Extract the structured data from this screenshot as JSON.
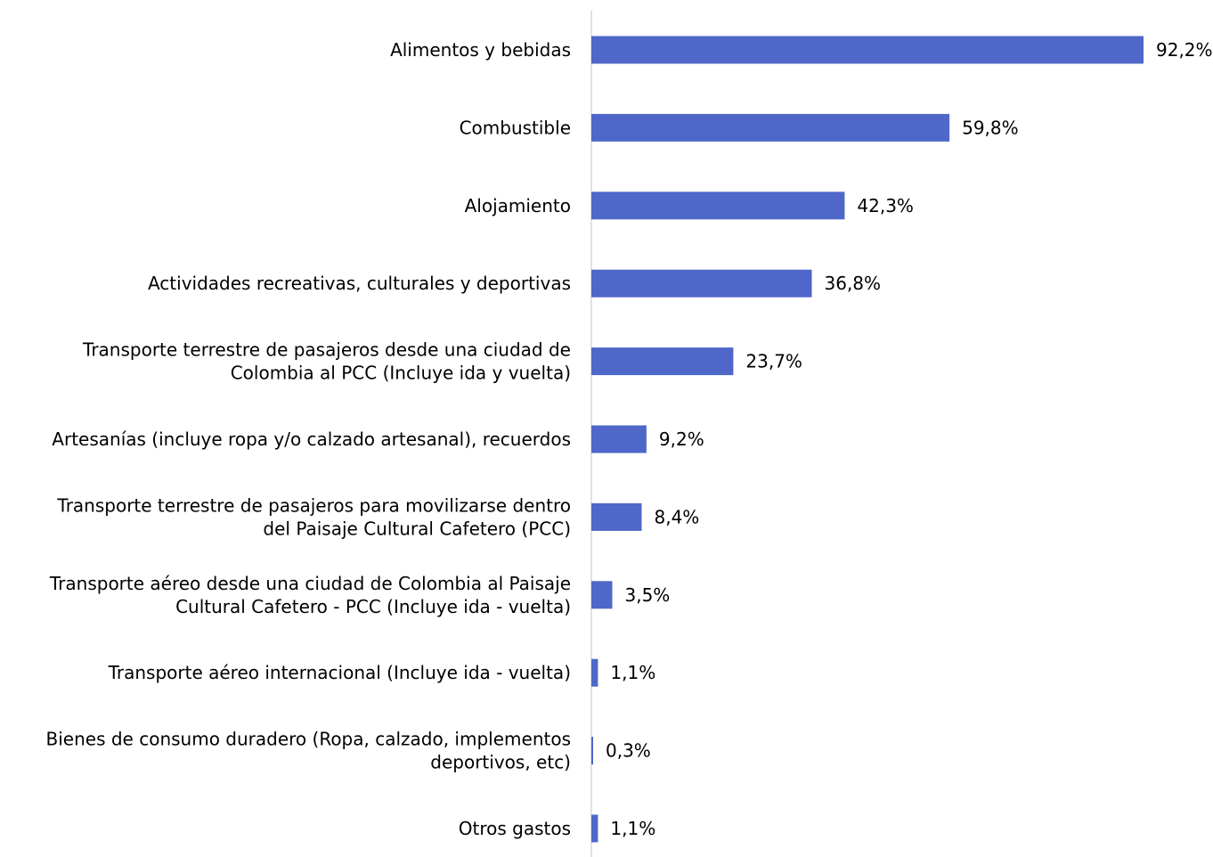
{
  "chart_data": {
    "type": "bar",
    "orientation": "horizontal",
    "categories": [
      "Alimentos y bebidas",
      "Combustible",
      "Alojamiento",
      "Actividades recreativas, culturales y deportivas",
      "Transporte terrestre de pasajeros desde una ciudad de Colombia al PCC (Incluye ida y vuelta)",
      "Artesanías (incluye ropa y/o calzado artesanal), recuerdos",
      "Transporte terrestre de pasajeros para movilizarse dentro del Paisaje Cultural Cafetero (PCC)",
      "Transporte aéreo desde una ciudad de Colombia al Paisaje Cultural Cafetero - PCC (Incluye ida - vuelta)",
      "Transporte aéreo internacional (Incluye ida - vuelta)",
      "Bienes de consumo duradero (Ropa, calzado, implementos deportivos, etc)",
      "Otros gastos"
    ],
    "category_lines": [
      [
        "Alimentos y bebidas"
      ],
      [
        "Combustible"
      ],
      [
        "Alojamiento"
      ],
      [
        "Actividades recreativas, culturales y deportivas"
      ],
      [
        "Transporte terrestre de pasajeros desde una ciudad de",
        "Colombia al PCC (Incluye ida y vuelta)"
      ],
      [
        "Artesanías (incluye ropa y/o calzado artesanal), recuerdos"
      ],
      [
        "Transporte terrestre de pasajeros para movilizarse dentro",
        "del Paisaje Cultural Cafetero (PCC)"
      ],
      [
        "Transporte aéreo desde una ciudad de Colombia al Paisaje",
        "Cultural Cafetero - PCC (Incluye ida - vuelta)"
      ],
      [
        "Transporte aéreo internacional (Incluye ida - vuelta)"
      ],
      [
        "Bienes de consumo duradero (Ropa, calzado, implementos",
        "deportivos, etc)"
      ],
      [
        "Otros gastos"
      ]
    ],
    "values": [
      92.2,
      59.8,
      42.3,
      36.8,
      23.7,
      9.2,
      8.4,
      3.5,
      1.1,
      0.3,
      1.1
    ],
    "value_labels": [
      "92,2%",
      "59,8%",
      "42,3%",
      "36,8%",
      "23,7%",
      "9,2%",
      "8,4%",
      "3,5%",
      "1,1%",
      "0,3%",
      "1,1%"
    ],
    "unit": "%",
    "xlim": [
      0,
      92.2
    ],
    "bar_color": "#4E67C8",
    "axis_color": "#D9D9D9",
    "grid": false,
    "legend": "none"
  }
}
